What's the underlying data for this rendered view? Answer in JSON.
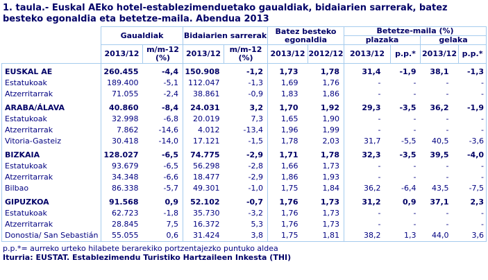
{
  "title": "1. taula.- Euskal AEko hotel-establezimenduetako gaualdiak, bidaiarien sarrerak, batez besteko egonaldia eta betetze-maila. Abendua 2013",
  "colors": {
    "text": "#000080",
    "border": "#A5CBEE"
  },
  "header": {
    "groups": {
      "gaualdiak": "Gaualdiak",
      "bidaiarien": "Bidaiarien sarrerak",
      "batez": "Batez besteko egonaldia",
      "betetze": "Betetze-maila (%)",
      "plazaka": "plazaka",
      "gelaka": "gelaka"
    },
    "columns": [
      "2013/12",
      "m/m-12\n(%)",
      "2013/12",
      "m/m-12\n(%)",
      "2013/12",
      "2012/12",
      "2013/12",
      "p.p.*",
      "2013/12",
      "p.p.*"
    ]
  },
  "rows": [
    {
      "label": "EUSKAL AE",
      "bold": true,
      "values": [
        "260.455",
        "-4,4",
        "150.908",
        "-1,2",
        "1,73",
        "1,78",
        "31,4",
        "-1,9",
        "38,1",
        "-1,3"
      ]
    },
    {
      "label": "Estatukoak",
      "bold": false,
      "values": [
        "189.400",
        "-5,1",
        "112.047",
        "-1,3",
        "1,69",
        "1,76",
        "-",
        "-",
        "-",
        "-"
      ]
    },
    {
      "label": "Atzerritarrak",
      "bold": false,
      "values": [
        "71.055",
        "-2,4",
        "38.861",
        "-0,9",
        "1,83",
        "1,86",
        "-",
        "-",
        "-",
        "-"
      ]
    },
    {
      "label": "ARABA/ÁLAVA",
      "bold": true,
      "values": [
        "40.860",
        "-8,4",
        "24.031",
        "3,2",
        "1,70",
        "1,92",
        "29,3",
        "-3,5",
        "36,2",
        "-1,9"
      ]
    },
    {
      "label": "Estatukoak",
      "bold": false,
      "values": [
        "32.998",
        "-6,8",
        "20.019",
        "7,3",
        "1,65",
        "1,90",
        "-",
        "-",
        "-",
        "-"
      ]
    },
    {
      "label": "Atzerritarrak",
      "bold": false,
      "values": [
        "7.862",
        "-14,6",
        "4.012",
        "-13,4",
        "1,96",
        "1,99",
        "-",
        "-",
        "-",
        "-"
      ]
    },
    {
      "label": "Vitoria-Gasteiz",
      "bold": false,
      "values": [
        "30.418",
        "-14,0",
        "17.121",
        "-1,5",
        "1,78",
        "2,03",
        "31,7",
        "-5,5",
        "40,5",
        "-3,6"
      ]
    },
    {
      "label": "BIZKAIA",
      "bold": true,
      "values": [
        "128.027",
        "-6,5",
        "74.775",
        "-2,9",
        "1,71",
        "1,78",
        "32,3",
        "-3,5",
        "39,5",
        "-4,0"
      ]
    },
    {
      "label": "Estatukoak",
      "bold": false,
      "values": [
        "93.679",
        "-6,5",
        "56.298",
        "-2,8",
        "1,66",
        "1,73",
        "-",
        "-",
        "-",
        "-"
      ]
    },
    {
      "label": "Atzerritarrak",
      "bold": false,
      "values": [
        "34.348",
        "-6,6",
        "18.477",
        "-2,9",
        "1,86",
        "1,93",
        "-",
        "-",
        "-",
        "-"
      ]
    },
    {
      "label": "Bilbao",
      "bold": false,
      "values": [
        "86.338",
        "-5,7",
        "49.301",
        "-1,0",
        "1,75",
        "1,84",
        "36,2",
        "-6,4",
        "43,5",
        "-7,5"
      ]
    },
    {
      "label": "GIPUZKOA",
      "bold": true,
      "values": [
        "91.568",
        "0,9",
        "52.102",
        "-0,7",
        "1,76",
        "1,73",
        "31,2",
        "0,9",
        "37,1",
        "2,3"
      ]
    },
    {
      "label": "Estatukoak",
      "bold": false,
      "values": [
        "62.723",
        "-1,8",
        "35.730",
        "-3,2",
        "1,76",
        "1,73",
        "-",
        "-",
        "-",
        "-"
      ]
    },
    {
      "label": "Atzerritarrak",
      "bold": false,
      "values": [
        "28.845",
        "7,5",
        "16.372",
        "5,3",
        "1,76",
        "1,73",
        "-",
        "-",
        "-",
        "-"
      ]
    },
    {
      "label": "Donostia/ San Sebastián",
      "bold": false,
      "values": [
        "55.055",
        "0,6",
        "31.424",
        "3,8",
        "1,75",
        "1,81",
        "38,2",
        "1,3",
        "44,0",
        "3,6"
      ]
    }
  ],
  "footnote": "p.p.*= aurreko urteko hilabete berarekiko portzentajezko puntuko aldea",
  "source": "Iturria: EUSTAT. Establezimendu Turistiko Hartzaileen Inkesta (THI)",
  "chart_data": {
    "type": "table",
    "title": "1. taula.- Euskal AEko hotel-establezimenduetako gaualdiak, bidaiarien sarrerak, batez besteko egonaldia eta betetze-maila. Abendua 2013",
    "column_groups": [
      "Gaualdiak",
      "Gaualdiak",
      "Bidaiarien sarrerak",
      "Bidaiarien sarrerak",
      "Batez besteko egonaldia",
      "Batez besteko egonaldia",
      "Betetze-maila (%) plazaka",
      "Betetze-maila (%) plazaka",
      "Betetze-maila (%) gelaka",
      "Betetze-maila (%) gelaka"
    ],
    "columns": [
      "2013/12",
      "m/m-12 (%)",
      "2013/12",
      "m/m-12 (%)",
      "2013/12",
      "2012/12",
      "2013/12",
      "p.p.*",
      "2013/12",
      "p.p.*"
    ]
  }
}
